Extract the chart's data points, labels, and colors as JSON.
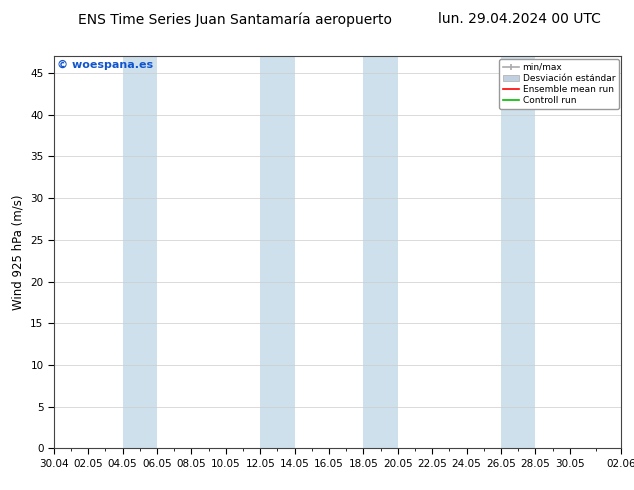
{
  "title_left": "ENS Time Series Juan Santamaría aeropuerto",
  "title_right": "lun. 29.04.2024 00 UTC",
  "ylabel": "Wind 925 hPa (m/s)",
  "copyright": "© woespana.es",
  "ylim": [
    0,
    47
  ],
  "yticks": [
    0,
    5,
    10,
    15,
    20,
    25,
    30,
    35,
    40,
    45
  ],
  "x_tick_labels": [
    "30.04",
    "02.05",
    "04.05",
    "06.05",
    "08.05",
    "10.05",
    "12.05",
    "14.05",
    "16.05",
    "18.05",
    "20.05",
    "22.05",
    "24.05",
    "26.05",
    "28.05",
    "30.05",
    "02.06"
  ],
  "shaded_band_color": "#cfe0ed",
  "background_color": "#ffffff",
  "plot_bg_color": "#ffffff",
  "legend_minmax_label": "min/max",
  "legend_std_label": "Desviación estándar",
  "legend_mean_label": "Ensemble mean run",
  "legend_control_label": "Controll run",
  "legend_mean_color": "#ff0000",
  "legend_control_color": "#00bb00",
  "legend_minmax_color": "#aaaaaa",
  "legend_std_color": "#c0d0e0",
  "shaded_band_indices": [
    2,
    10,
    16,
    24,
    32
  ],
  "title_fontsize": 10,
  "tick_fontsize": 7.5,
  "ylabel_fontsize": 8.5,
  "copyright_fontsize": 8
}
